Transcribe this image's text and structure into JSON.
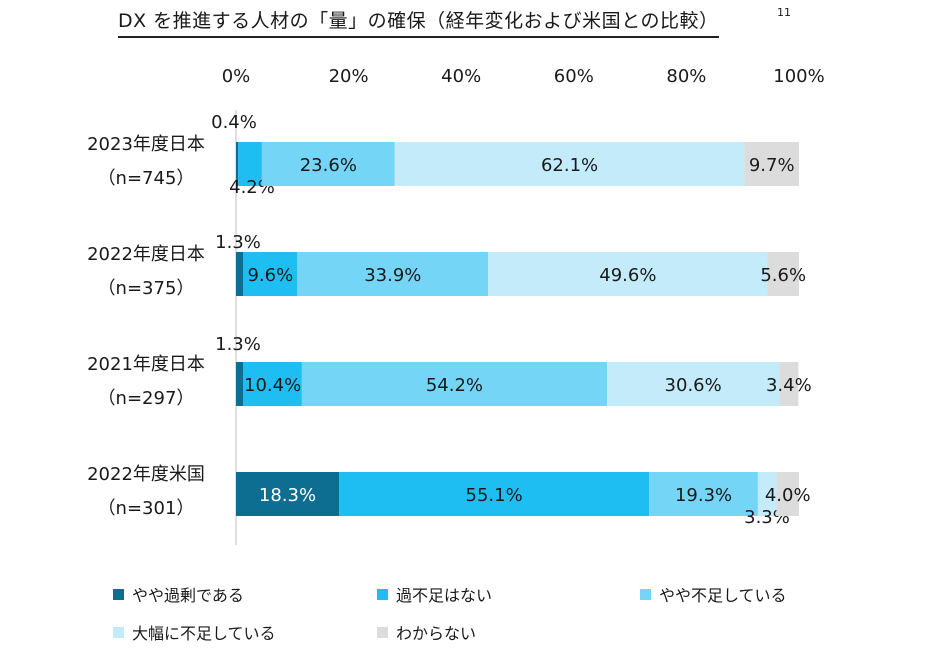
{
  "title": "DX を推進する人材の「量」の確保（経年変化および米国との比較）",
  "footnote": "11",
  "chart_data": {
    "type": "bar",
    "orientation": "horizontal",
    "stacked": true,
    "xlim": [
      0,
      100
    ],
    "x_ticks": [
      "0%",
      "20%",
      "40%",
      "60%",
      "80%",
      "100%"
    ],
    "categories": [
      [
        "2023年度日本",
        "（n=745）"
      ],
      [
        "2022年度日本",
        "（n=375）"
      ],
      [
        "2021年度日本",
        "（n=297）"
      ],
      [
        "2022年度米国",
        "（n=301）"
      ]
    ],
    "series": [
      {
        "name": "やや過剰である",
        "color": "#0E6E92",
        "values": [
          0.4,
          1.3,
          1.3,
          18.3
        ],
        "labels": [
          "0.4%",
          "1.3%",
          "1.3%",
          "18.3%"
        ]
      },
      {
        "name": "過不足はない",
        "color": "#1FBEF2",
        "values": [
          4.2,
          9.6,
          10.4,
          55.1
        ],
        "labels": [
          "4.2%",
          "9.6%",
          "10.4%",
          "55.1%"
        ]
      },
      {
        "name": "やや不足している",
        "color": "#74D5F7",
        "values": [
          23.6,
          33.9,
          54.2,
          19.3
        ],
        "labels": [
          "23.6%",
          "33.9%",
          "54.2%",
          "19.3%"
        ]
      },
      {
        "name": "大幅に不足している",
        "color": "#C4EBFA",
        "values": [
          62.1,
          49.6,
          30.6,
          3.3
        ],
        "labels": [
          "62.1%",
          "49.6%",
          "30.6%",
          "3.3%"
        ]
      },
      {
        "name": "わからない",
        "color": "#DCDCDC",
        "values": [
          9.7,
          5.6,
          3.4,
          4.0
        ],
        "labels": [
          "9.7%",
          "5.6%",
          "3.4%",
          "4.0%"
        ]
      }
    ],
    "legend_position": "bottom",
    "grid": false
  }
}
